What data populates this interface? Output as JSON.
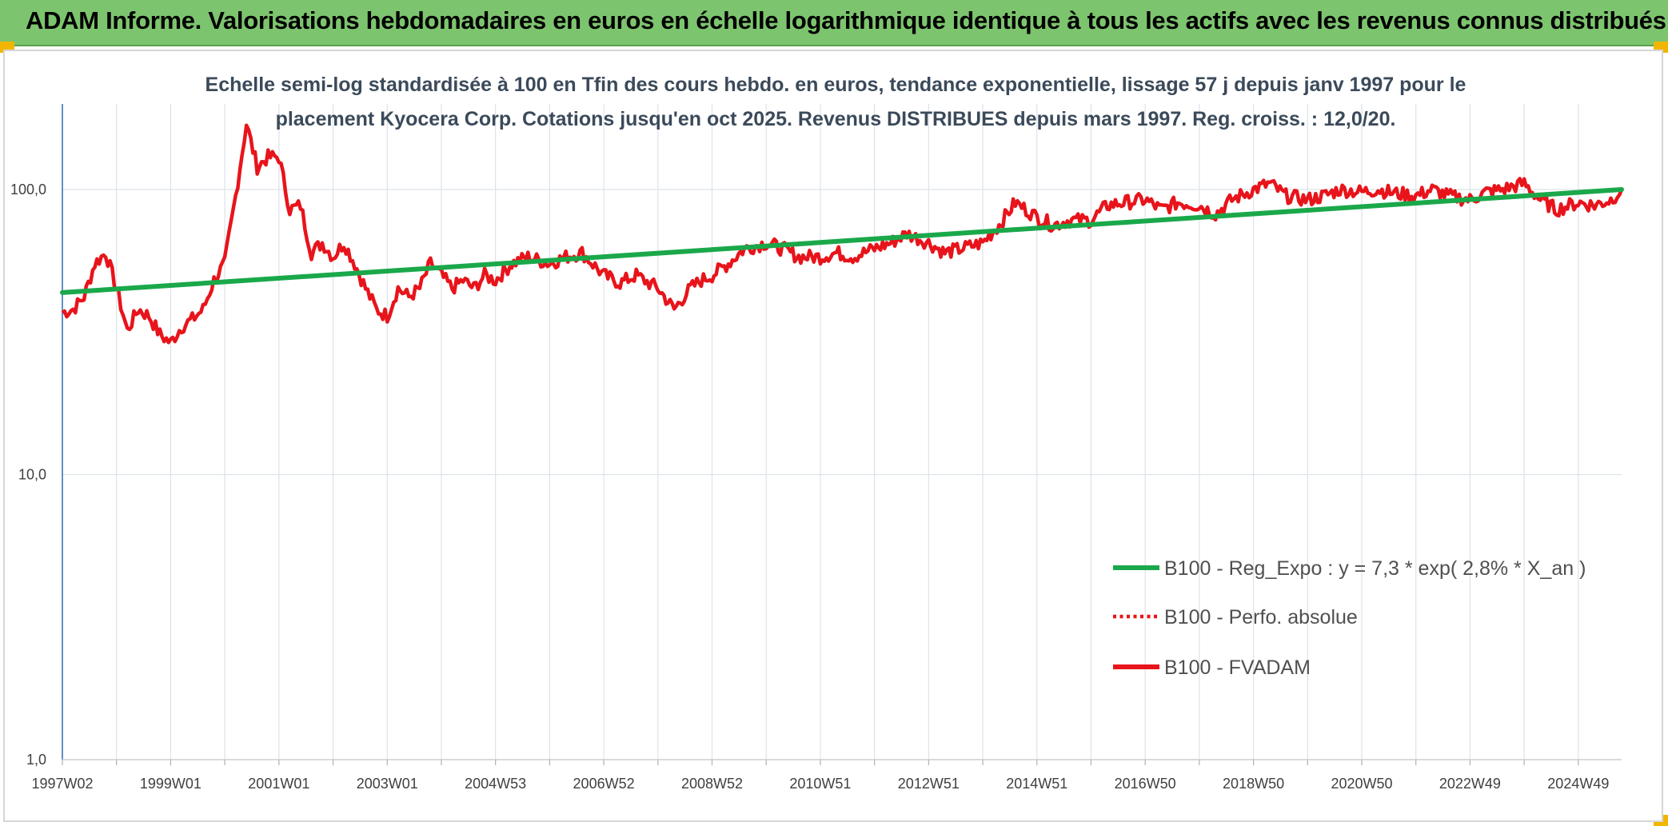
{
  "header": {
    "title": "ADAM Informe. Valorisations hebdomadaires en euros en échelle logarithmique identique à tous les actifs avec les revenus connus distribués"
  },
  "colors": {
    "header_bg": "#7dc46e",
    "corner_accent": "#f2b600",
    "regression_line": "#1aa84a",
    "fvadam_line": "#e8141b",
    "perf_line": "#e8141b",
    "grid": "#dde3ea"
  },
  "chart_data": {
    "type": "line",
    "title": "Echelle semi-log standardisée à 100 en Tfin des cours hebdo. en euros, tendance exponentielle, lissage 57 j depuis janv 1997 pour le placement Kyocera Corp. Cotations jusqu'en oct 2025. Revenus DISTRIBUES depuis mars 1997. Reg. croiss. : 12,0/20.",
    "title_lines": [
      "Echelle semi-log standardisée à 100 en Tfin des cours hebdo. en euros, tendance exponentielle, lissage 57 j depuis janv 1997 pour le",
      "placement Kyocera Corp. Cotations jusqu'en oct 2025. Revenus DISTRIBUES depuis mars 1997. Reg. croiss. : 12,0/20."
    ],
    "yscale": "log",
    "ylim": [
      1,
      200
    ],
    "xlim": [
      1997.0,
      2025.8
    ],
    "y_ticks": [
      {
        "value": 100,
        "label": "100,0"
      },
      {
        "value": 10,
        "label": "10,0"
      },
      {
        "value": 1,
        "label": "1,0"
      }
    ],
    "x_ticks": [
      {
        "value": 1997.0,
        "label": "1997W02"
      },
      {
        "value": 1999.0,
        "label": "1999W01"
      },
      {
        "value": 2001.0,
        "label": "2001W01"
      },
      {
        "value": 2003.0,
        "label": "2003W01"
      },
      {
        "value": 2005.0,
        "label": "2004W53"
      },
      {
        "value": 2007.0,
        "label": "2006W52"
      },
      {
        "value": 2009.0,
        "label": "2008W52"
      },
      {
        "value": 2011.0,
        "label": "2010W51"
      },
      {
        "value": 2013.0,
        "label": "2012W51"
      },
      {
        "value": 2015.0,
        "label": "2014W51"
      },
      {
        "value": 2017.0,
        "label": "2016W50"
      },
      {
        "value": 2019.0,
        "label": "2018W50"
      },
      {
        "value": 2021.0,
        "label": "2020W50"
      },
      {
        "value": 2023.0,
        "label": "2022W49"
      },
      {
        "value": 2025.0,
        "label": "2024W49"
      }
    ],
    "x_minor_ticks": [
      1998.0,
      2000.0,
      2002.0,
      2004.0,
      2006.0,
      2008.0,
      2010.0,
      2012.0,
      2014.0,
      2016.0,
      2018.0,
      2020.0,
      2022.0,
      2024.0
    ],
    "series": [
      {
        "name": "B100 - Reg_Expo : y = 7,3 * exp( 2,8% *  X_an )",
        "style": "solid-green",
        "x": [
          1997.0,
          2025.8
        ],
        "y": [
          43.5,
          100.0
        ]
      },
      {
        "name": "B100 - Perfo. absolue",
        "style": "dotted-red",
        "x": [],
        "y": []
      },
      {
        "name": "B100 - FVADAM",
        "style": "solid-red",
        "x": [
          1997.0,
          1997.2,
          1997.4,
          1997.6,
          1997.8,
          1998.0,
          1998.2,
          1998.4,
          1998.6,
          1998.8,
          1999.0,
          1999.2,
          1999.4,
          1999.6,
          1999.8,
          2000.0,
          2000.2,
          2000.4,
          2000.6,
          2000.8,
          2001.0,
          2001.2,
          2001.4,
          2001.6,
          2001.8,
          2002.0,
          2002.2,
          2002.4,
          2002.6,
          2002.8,
          2003.0,
          2003.2,
          2003.4,
          2003.6,
          2003.8,
          2004.0,
          2004.2,
          2004.4,
          2004.6,
          2004.8,
          2005.0,
          2005.3,
          2005.6,
          2006.0,
          2006.3,
          2006.6,
          2007.0,
          2007.3,
          2007.6,
          2008.0,
          2008.3,
          2008.6,
          2008.8,
          2009.0,
          2009.3,
          2009.6,
          2010.0,
          2010.3,
          2010.6,
          2011.0,
          2011.3,
          2011.6,
          2012.0,
          2012.3,
          2012.6,
          2013.0,
          2013.3,
          2013.6,
          2014.0,
          2014.3,
          2014.6,
          2014.8,
          2015.0,
          2015.3,
          2015.6,
          2016.0,
          2016.3,
          2016.6,
          2017.0,
          2017.3,
          2017.6,
          2018.0,
          2018.3,
          2018.6,
          2019.0,
          2019.3,
          2019.6,
          2020.0,
          2020.3,
          2020.6,
          2021.0,
          2021.3,
          2021.6,
          2022.0,
          2022.3,
          2022.6,
          2023.0,
          2023.3,
          2023.6,
          2024.0,
          2024.3,
          2024.6,
          2025.0,
          2025.3,
          2025.6,
          2025.8
        ],
        "y": [
          37,
          38,
          42,
          55,
          60,
          45,
          32,
          38,
          36,
          31,
          29,
          33,
          35,
          38,
          48,
          55,
          95,
          170,
          120,
          130,
          130,
          85,
          88,
          60,
          65,
          58,
          65,
          55,
          45,
          38,
          36,
          45,
          42,
          45,
          55,
          50,
          45,
          48,
          45,
          50,
          48,
          55,
          58,
          55,
          58,
          60,
          50,
          47,
          50,
          45,
          38,
          45,
          48,
          50,
          55,
          62,
          65,
          62,
          58,
          58,
          60,
          58,
          62,
          65,
          70,
          65,
          60,
          62,
          65,
          75,
          90,
          85,
          80,
          75,
          78,
          78,
          88,
          90,
          92,
          85,
          90,
          88,
          82,
          92,
          100,
          105,
          95,
          92,
          95,
          100,
          98,
          100,
          97,
          95,
          100,
          95,
          92,
          98,
          100,
          105,
          92,
          85,
          90,
          88,
          92,
          100
        ]
      }
    ],
    "legend": {
      "position": "lower-right",
      "entries": [
        {
          "label": "B100 - Reg_Expo : y = 7,3 * exp( 2,8% *  X_an )",
          "style": "solid-green"
        },
        {
          "label": "B100 - Perfo. absolue",
          "style": "dotted-red"
        },
        {
          "label": "B100 - FVADAM",
          "style": "solid-red"
        }
      ]
    }
  }
}
